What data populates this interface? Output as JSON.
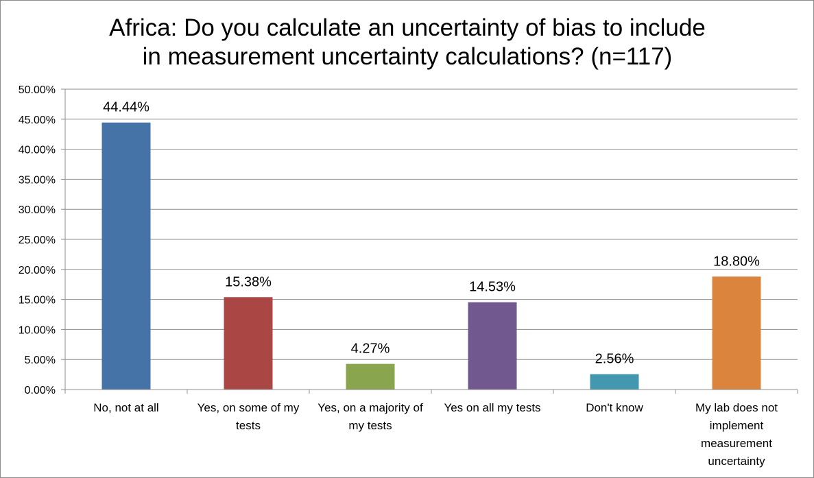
{
  "chart_data": {
    "type": "bar",
    "title": "Africa: Do you calculate an uncertainty of bias to include in measurement uncertainty calculations? (n=117)",
    "title_lines": [
      "Africa: Do you calculate an uncertainty of bias to include",
      "in measurement uncertainty calculations? (n=117)"
    ],
    "xlabel": "",
    "ylabel": "",
    "ylim": [
      0,
      50
    ],
    "yticks": [
      0,
      5,
      10,
      15,
      20,
      25,
      30,
      35,
      40,
      45,
      50
    ],
    "ytick_labels": [
      "0.00%",
      "5.00%",
      "10.00%",
      "15.00%",
      "20.00%",
      "25.00%",
      "30.00%",
      "35.00%",
      "40.00%",
      "45.00%",
      "50.00%"
    ],
    "grid": true,
    "legend": "none",
    "categories": [
      "No, not at all",
      "Yes, on some of my tests",
      "Yes, on a majority of my tests",
      "Yes on all my tests",
      "Don't know",
      "My lab does not implement measurement uncertainty"
    ],
    "category_lines": [
      [
        "No, not at all"
      ],
      [
        "Yes, on some of my",
        "tests"
      ],
      [
        "Yes, on a majority of",
        "my tests"
      ],
      [
        "Yes on all my tests"
      ],
      [
        "Don't know"
      ],
      [
        "My lab does not",
        "implement",
        "measurement",
        "uncertainty"
      ]
    ],
    "values": [
      44.44,
      15.38,
      4.27,
      14.53,
      2.56,
      18.8
    ],
    "data_labels": [
      "44.44%",
      "15.38%",
      "4.27%",
      "14.53%",
      "2.56%",
      "18.80%"
    ],
    "colors": [
      "#4572a7",
      "#aa4643",
      "#89a54e",
      "#71588f",
      "#4198af",
      "#db843d"
    ]
  }
}
